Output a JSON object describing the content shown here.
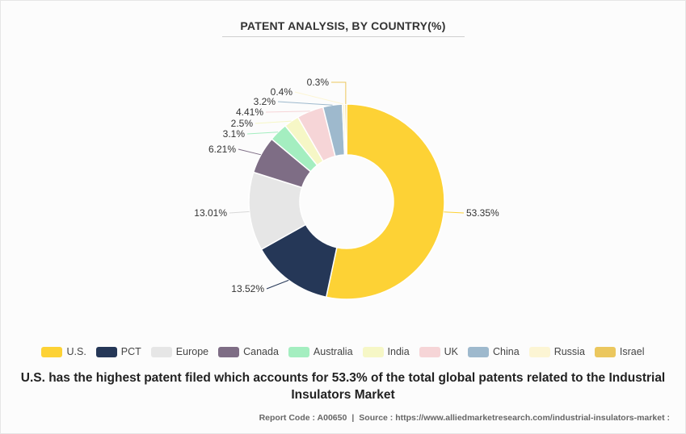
{
  "title": "PATENT ANALYSIS, BY COUNTRY(%)",
  "headline": "U.S. has the highest patent filed which accounts for 53.3% of the total global patents related to the Industrial Insulators Market",
  "footer": {
    "report_code": "Report Code : A00650",
    "separator": "|",
    "source": "Source : https://www.alliedmarketresearch.com/industrial-insulators-market :"
  },
  "chart_data": {
    "type": "pie",
    "variant": "donut",
    "title": "PATENT ANALYSIS, BY COUNTRY(%)",
    "legend_position": "bottom",
    "slices": [
      {
        "name": "U.S.",
        "value": 53.35,
        "label": "53.35%",
        "color": "#fdd235"
      },
      {
        "name": "PCT",
        "value": 13.52,
        "label": "13.52%",
        "color": "#253757"
      },
      {
        "name": "Europe",
        "value": 13.01,
        "label": "13.01%",
        "color": "#e6e6e6"
      },
      {
        "name": "Canada",
        "value": 6.21,
        "label": "6.21%",
        "color": "#7e6d85"
      },
      {
        "name": "Australia",
        "value": 3.1,
        "label": "3.1%",
        "color": "#a4eec0"
      },
      {
        "name": "India",
        "value": 2.5,
        "label": "2.5%",
        "color": "#f6f7c6"
      },
      {
        "name": "UK",
        "value": 4.41,
        "label": "4.41%",
        "color": "#f6d5d7"
      },
      {
        "name": "China",
        "value": 3.2,
        "label": "3.2%",
        "color": "#9eb9cd"
      },
      {
        "name": "Russia",
        "value": 0.4,
        "label": "0.4%",
        "color": "#fcf5d4"
      },
      {
        "name": "Israel",
        "value": 0.3,
        "label": "0.3%",
        "color": "#ebc75e"
      }
    ]
  }
}
